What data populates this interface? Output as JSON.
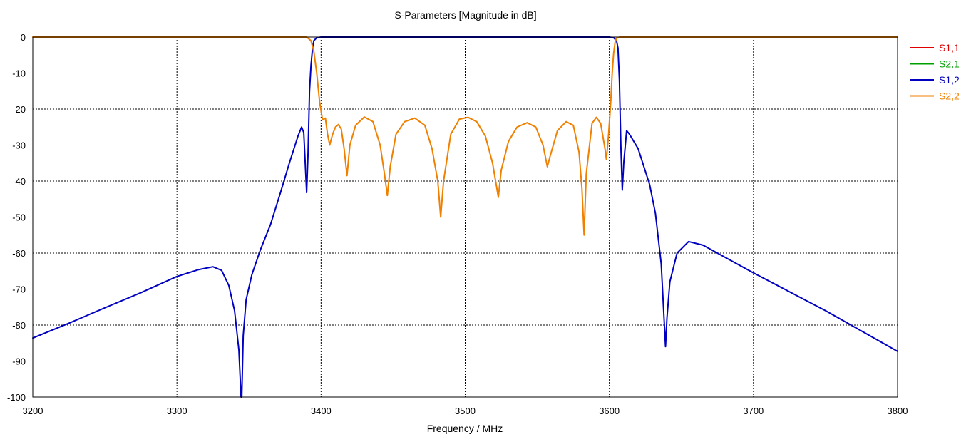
{
  "chart_data": {
    "type": "line",
    "title": "S-Parameters [Magnitude in dB]",
    "xlabel": "Frequency / MHz",
    "ylabel": "",
    "xlim": [
      3200,
      3800
    ],
    "ylim": [
      -100,
      0
    ],
    "x_ticks": [
      "3200",
      "3300",
      "3400",
      "3500",
      "3600",
      "3700",
      "3800"
    ],
    "y_ticks": [
      "0",
      "-10",
      "-20",
      "-30",
      "-40",
      "-50",
      "-60",
      "-70",
      "-80",
      "-90",
      "-100"
    ],
    "grid": true,
    "legend_position": "right",
    "series": [
      {
        "name": "S1,1",
        "color": "#e00000",
        "points": []
      },
      {
        "name": "S2,1",
        "color": "#00a000",
        "points": []
      },
      {
        "name": "S1,2",
        "color": "#0000c0",
        "points": [
          [
            3200,
            -83.6
          ],
          [
            3225,
            -79.5
          ],
          [
            3250,
            -75.2
          ],
          [
            3275,
            -71
          ],
          [
            3300,
            -66.5
          ],
          [
            3315,
            -64.6
          ],
          [
            3325,
            -63.8
          ],
          [
            3331,
            -64.8
          ],
          [
            3336,
            -69
          ],
          [
            3340,
            -76
          ],
          [
            3343,
            -87
          ],
          [
            3344.5,
            -100
          ],
          [
            3345,
            -100
          ],
          [
            3346,
            -83
          ],
          [
            3348,
            -73
          ],
          [
            3352,
            -66
          ],
          [
            3358,
            -59
          ],
          [
            3365,
            -52
          ],
          [
            3372,
            -43
          ],
          [
            3378,
            -35
          ],
          [
            3384,
            -27.5
          ],
          [
            3386.5,
            -25
          ],
          [
            3388,
            -26.5
          ],
          [
            3390,
            -43.2
          ],
          [
            3391,
            -32
          ],
          [
            3392,
            -15
          ],
          [
            3393,
            -8
          ],
          [
            3394,
            -3.5
          ],
          [
            3395,
            -1
          ],
          [
            3397,
            -0.2
          ],
          [
            3400,
            0
          ],
          [
            3500,
            0
          ],
          [
            3600,
            0
          ],
          [
            3603,
            -0.2
          ],
          [
            3605,
            -1
          ],
          [
            3606,
            -3
          ],
          [
            3607,
            -12
          ],
          [
            3608,
            -30
          ],
          [
            3609,
            -42.5
          ],
          [
            3610,
            -35
          ],
          [
            3612,
            -26
          ],
          [
            3614,
            -27
          ],
          [
            3620,
            -31
          ],
          [
            3628,
            -41
          ],
          [
            3632,
            -49
          ],
          [
            3636,
            -63
          ],
          [
            3639,
            -86
          ],
          [
            3640,
            -78
          ],
          [
            3642,
            -68
          ],
          [
            3647,
            -60
          ],
          [
            3655,
            -56.8
          ],
          [
            3665,
            -57.8
          ],
          [
            3700,
            -65.5
          ],
          [
            3750,
            -76
          ],
          [
            3800,
            -87.3
          ]
        ]
      },
      {
        "name": "S2,2",
        "color": "#f08000",
        "points": [
          [
            3200,
            0
          ],
          [
            3390,
            0
          ],
          [
            3393,
            -1
          ],
          [
            3395,
            -4
          ],
          [
            3397,
            -10
          ],
          [
            3399,
            -18
          ],
          [
            3401,
            -23
          ],
          [
            3403,
            -22.5
          ],
          [
            3404.5,
            -27
          ],
          [
            3406,
            -30
          ],
          [
            3408,
            -27
          ],
          [
            3410,
            -25
          ],
          [
            3412,
            -24.3
          ],
          [
            3414,
            -25.5
          ],
          [
            3416,
            -31
          ],
          [
            3418,
            -38.5
          ],
          [
            3420,
            -30
          ],
          [
            3424,
            -24.5
          ],
          [
            3430,
            -22.2
          ],
          [
            3436,
            -23.5
          ],
          [
            3441,
            -30
          ],
          [
            3444,
            -38
          ],
          [
            3446,
            -44
          ],
          [
            3448,
            -36
          ],
          [
            3452,
            -27
          ],
          [
            3458,
            -23.5
          ],
          [
            3465,
            -22.5
          ],
          [
            3472,
            -24.5
          ],
          [
            3477,
            -31
          ],
          [
            3481,
            -40
          ],
          [
            3483,
            -50
          ],
          [
            3485,
            -40
          ],
          [
            3490,
            -27
          ],
          [
            3496,
            -22.8
          ],
          [
            3502,
            -22.3
          ],
          [
            3508,
            -23.5
          ],
          [
            3514,
            -27.5
          ],
          [
            3519,
            -35
          ],
          [
            3523,
            -44.5
          ],
          [
            3525,
            -37
          ],
          [
            3530,
            -29
          ],
          [
            3536,
            -25
          ],
          [
            3543,
            -23.8
          ],
          [
            3549,
            -25
          ],
          [
            3554,
            -30
          ],
          [
            3557,
            -36
          ],
          [
            3559,
            -33
          ],
          [
            3564,
            -26
          ],
          [
            3570,
            -23.5
          ],
          [
            3575,
            -24.5
          ],
          [
            3579,
            -32
          ],
          [
            3581,
            -42
          ],
          [
            3582.5,
            -55
          ],
          [
            3584,
            -38
          ],
          [
            3588,
            -24
          ],
          [
            3591,
            -22.3
          ],
          [
            3594,
            -24
          ],
          [
            3597,
            -31
          ],
          [
            3598,
            -34
          ],
          [
            3599.5,
            -27
          ],
          [
            3601,
            -18
          ],
          [
            3602,
            -10
          ],
          [
            3603,
            -4.5
          ],
          [
            3604,
            -1.5
          ],
          [
            3605,
            -0.3
          ],
          [
            3607,
            0
          ],
          [
            3800,
            0
          ]
        ]
      }
    ]
  }
}
